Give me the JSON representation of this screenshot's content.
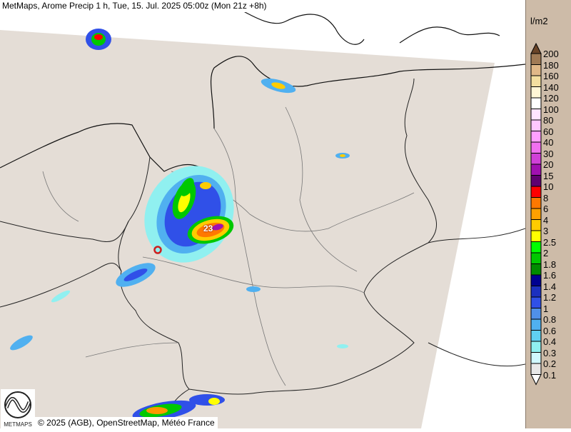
{
  "header": {
    "title": "MetMaps, Arome Precip 1 h, Tue, 15. Jul. 2025 05:00z (Mon 21z +8h)"
  },
  "legend": {
    "unit": "l/m2",
    "levels": [
      "200",
      "180",
      "160",
      "140",
      "120",
      "100",
      "80",
      "60",
      "40",
      "30",
      "20",
      "15",
      "10",
      "8",
      "6",
      "4",
      "3",
      "2.5",
      "2",
      "1.8",
      "1.6",
      "1.4",
      "1.2",
      "1",
      "0.8",
      "0.6",
      "0.4",
      "0.3",
      "0.2",
      "0.1"
    ],
    "colors": [
      "#a07a55",
      "#e0b888",
      "#f3dfa0",
      "#fff6d6",
      "#ffffff",
      "#ffe6ff",
      "#ffc8ff",
      "#ffa0ff",
      "#f070f0",
      "#d040d8",
      "#a010b0",
      "#600070",
      "#ff0000",
      "#ff7800",
      "#ffa000",
      "#ffcc00",
      "#ffff00",
      "#00ff00",
      "#00c800",
      "#008c00",
      "#000090",
      "#1c30c0",
      "#3050e8",
      "#5090e8",
      "#50b0f0",
      "#60d0f0",
      "#90f0f0",
      "#d0f8ff",
      "#e8e8e8"
    ],
    "top_arrow_color": "#6a4428"
  },
  "map": {
    "max_value_label": "23",
    "domain_color": "#e4ddd6",
    "marker_color": "#cc2020"
  },
  "footer": {
    "attribution": "© 2025 (AGB), OpenStreetMap, Météo France",
    "logo_text": "METMAPS"
  }
}
